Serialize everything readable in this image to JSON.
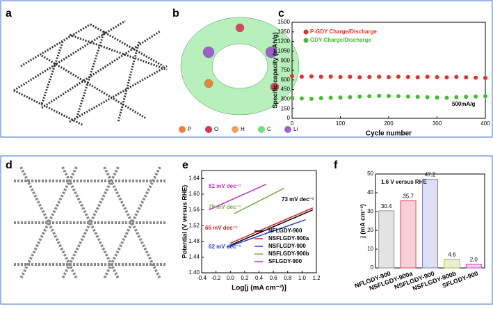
{
  "figure": {
    "panel_labels": [
      "a",
      "b",
      "c",
      "d",
      "e",
      "f"
    ],
    "legend_b": [
      "P",
      "O",
      "H",
      "C",
      "Li"
    ]
  },
  "chart_data": [
    {
      "type": "scatter",
      "xlabel": "Cycle number",
      "ylabel": "Specific capacity (mAh/g)",
      "annotations": [
        "500mA/g"
      ],
      "legend": "upper left",
      "x": [
        0,
        20,
        40,
        60,
        80,
        100,
        120,
        140,
        160,
        180,
        200,
        220,
        240,
        260,
        280,
        300,
        320,
        340,
        360,
        380,
        400
      ],
      "series": [
        {
          "name": "P-GDY Charge/Discharge",
          "color": "#e8302a",
          "values": [
            660,
            650,
            655,
            648,
            652,
            645,
            650,
            640,
            645,
            648,
            642,
            650,
            645,
            640,
            648,
            642,
            638,
            645,
            640,
            635,
            630
          ]
        },
        {
          "name": "GDY Charge/Discharge",
          "color": "#3fbf2a",
          "values": [
            320,
            310,
            305,
            315,
            320,
            325,
            330,
            340,
            345,
            350,
            348,
            345,
            340,
            335,
            330,
            325,
            320,
            330,
            335,
            340,
            345
          ]
        }
      ],
      "xlim": [
        0,
        400
      ],
      "xticks": [
        0,
        100,
        200,
        300,
        400
      ],
      "ylim": [
        0,
        1500
      ],
      "yticks": [
        0,
        150,
        300,
        450,
        600,
        750,
        900,
        1050,
        1200,
        1350,
        1500
      ]
    },
    {
      "type": "line",
      "xlabel": "Log[j (mA cm⁻²)]",
      "ylabel": "Potential (V versus RHE)",
      "legend": "lower right",
      "annotations": [
        "82 mV dec⁻¹",
        "79 mV dec⁻¹",
        "73 mV dec⁻¹",
        "66 mV dec⁻¹",
        "62 mV dec⁻¹"
      ],
      "series": [
        {
          "name": "NFLGDY-900",
          "color": "#000000",
          "x": [
            0,
            1.15
          ],
          "values": [
            1.47,
            1.56
          ]
        },
        {
          "name": "NSFLGDY-900a",
          "color": "#e02020",
          "x": [
            0,
            1.15
          ],
          "values": [
            1.475,
            1.565
          ]
        },
        {
          "name": "NSFLGDY-900",
          "color": "#2040e0",
          "x": [
            -0.05,
            1.05
          ],
          "values": [
            1.465,
            1.535
          ]
        },
        {
          "name": "NSFLGDY-900b",
          "color": "#70b040",
          "x": [
            0.05,
            0.75
          ],
          "values": [
            1.55,
            1.615
          ]
        },
        {
          "name": "SFLGDY-900",
          "color": "#c030c0",
          "x": [
            -0.3,
            0.5
          ],
          "values": [
            1.56,
            1.625
          ]
        }
      ],
      "xlim": [
        -0.4,
        1.2
      ],
      "xticks": [
        -0.4,
        -0.2,
        {
          "value": 0,
          "label": "0.0"
        },
        0.2,
        0.4,
        0.6,
        0.8,
        {
          "value": 1,
          "label": "1.0"
        },
        1.2
      ],
      "ylim": [
        1.4,
        1.66
      ],
      "yticks": [
        {
          "value": 1.4,
          "label": "1.40"
        },
        1.44,
        1.48,
        1.52,
        1.56,
        {
          "value": 1.6,
          "label": "1.60"
        },
        1.64
      ]
    },
    {
      "type": "bar",
      "ylabel": "j (mA cm⁻²)",
      "annotations": [
        "1.6 V versus RHE"
      ],
      "categories": [
        "NFLGDY-900",
        "NSFLGDY-900a",
        "NSFLGDY-900",
        "NSFLGDY-900b",
        "SFLGDY-900"
      ],
      "values": [
        30.4,
        35.7,
        47.2,
        4.6,
        2.0
      ],
      "value_labels": [
        "30.4",
        "35.7",
        "47.2",
        "4.6",
        "2.0"
      ],
      "colors": [
        "#909090",
        "#e04060",
        "#8080d0",
        "#b0c040",
        "#d040c0"
      ],
      "ylim": [
        0,
        50
      ],
      "yticks": [
        0,
        10,
        20,
        30,
        40,
        50
      ]
    }
  ]
}
